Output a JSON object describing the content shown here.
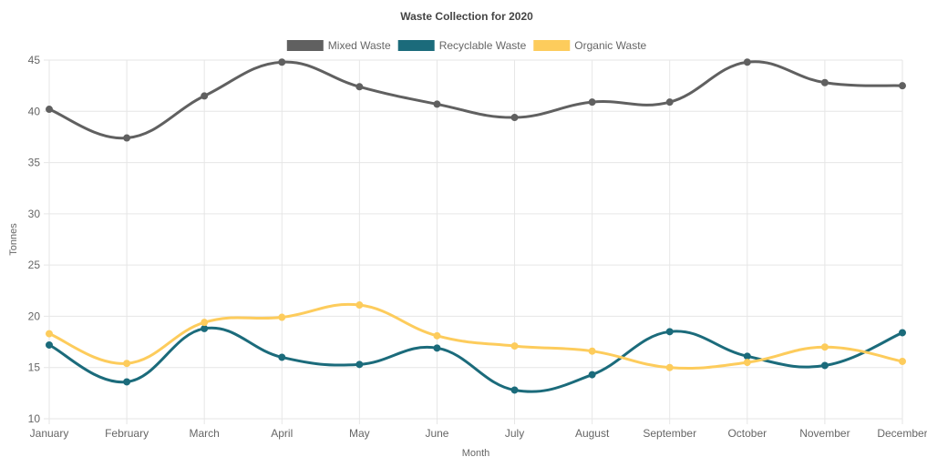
{
  "chart_data": {
    "type": "line",
    "title": "Waste Collection for 2020",
    "xlabel": "Month",
    "ylabel": "Tonnes",
    "ylim": [
      10,
      45
    ],
    "yticks": [
      10,
      15,
      20,
      25,
      30,
      35,
      40,
      45
    ],
    "grid": true,
    "legend_position": "top",
    "categories": [
      "January",
      "February",
      "March",
      "April",
      "May",
      "June",
      "July",
      "August",
      "September",
      "October",
      "November",
      "December"
    ],
    "series": [
      {
        "name": "Mixed Waste",
        "color": "#606060",
        "values": [
          40.2,
          37.4,
          41.5,
          44.8,
          42.4,
          40.7,
          39.4,
          40.9,
          40.9,
          44.8,
          42.8,
          42.5
        ]
      },
      {
        "name": "Recyclable Waste",
        "color": "#1b6b7b",
        "values": [
          17.2,
          13.6,
          18.8,
          16.0,
          15.3,
          16.9,
          12.8,
          14.3,
          18.5,
          16.1,
          15.2,
          18.4
        ]
      },
      {
        "name": "Organic Waste",
        "color": "#fdcc5c",
        "values": [
          18.3,
          15.4,
          19.4,
          19.9,
          21.1,
          18.1,
          17.1,
          16.6,
          15.0,
          15.5,
          17.0,
          15.6
        ]
      }
    ]
  }
}
